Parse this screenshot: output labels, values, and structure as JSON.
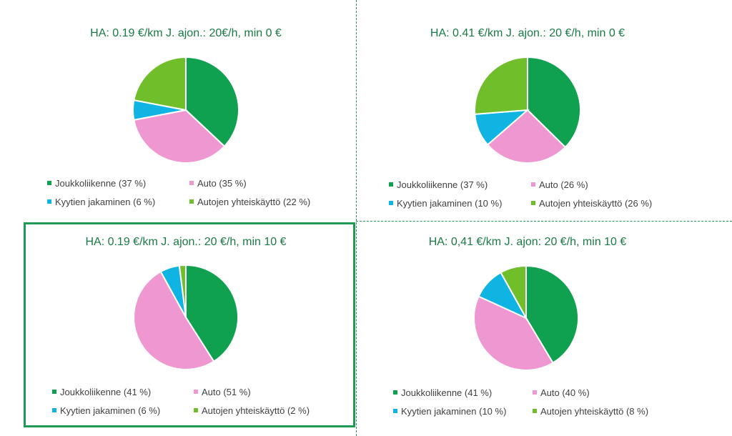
{
  "colors": {
    "Joukkoliikenne": "#0fa050",
    "Auto": "#ef97d0",
    "Kyytien jakaminen": "#0fb4e2",
    "Autojen yhteiskäyttö": "#6fbe2a"
  },
  "chart_data": [
    {
      "type": "pie",
      "title": "HA: 0.19 €/km  J. ajon.: 20€/h, min 0 €",
      "slices": [
        {
          "name": "Joukkoliikenne",
          "value": 37,
          "legend": "Joukkoliikenne (37 %)"
        },
        {
          "name": "Auto",
          "value": 35,
          "legend": "Auto (35 %)"
        },
        {
          "name": "Kyytien jakaminen",
          "value": 6,
          "legend": "Kyytien jakaminen (6 %)"
        },
        {
          "name": "Autojen yhteiskäyttö",
          "value": 22,
          "legend": "Autojen yhteiskäyttö  (22 %)"
        }
      ]
    },
    {
      "type": "pie",
      "title": "HA: 0.41 €/km  J. ajon.: 20 €/h, min 0 €",
      "slices": [
        {
          "name": "Joukkoliikenne",
          "value": 37,
          "legend": "Joukkoliikenne (37 %)"
        },
        {
          "name": "Auto",
          "value": 26,
          "legend": "Auto (26 %)"
        },
        {
          "name": "Kyytien jakaminen",
          "value": 10,
          "legend": "Kyytien jakaminen (10 %)"
        },
        {
          "name": "Autojen yhteiskäyttö",
          "value": 26,
          "legend": "Autojen yhteiskäyttö  (26 %)"
        }
      ]
    },
    {
      "type": "pie",
      "title": "HA: 0.19 €/km  J. ajon.: 20 €/h, min 10 €",
      "highlighted": true,
      "slices": [
        {
          "name": "Joukkoliikenne",
          "value": 41,
          "legend": "Joukkoliikenne (41 %)"
        },
        {
          "name": "Auto",
          "value": 51,
          "legend": "Auto (51 %)"
        },
        {
          "name": "Kyytien jakaminen",
          "value": 6,
          "legend": "Kyytien jakaminen (6 %)"
        },
        {
          "name": "Autojen yhteiskäyttö",
          "value": 2,
          "legend": "Autojen yhteiskäyttö  (2 %)"
        }
      ]
    },
    {
      "type": "pie",
      "title": "HA: 0,41 €/km  J. ajon: 20 €/h, min 10 €",
      "slices": [
        {
          "name": "Joukkoliikenne",
          "value": 41,
          "legend": "Joukkoliikenne (41 %)"
        },
        {
          "name": "Auto",
          "value": 40,
          "legend": "Auto (40 %)"
        },
        {
          "name": "Kyytien jakaminen",
          "value": 10,
          "legend": "Kyytien jakaminen (10 %)"
        },
        {
          "name": "Autojen yhteiskäyttö",
          "value": 8,
          "legend": "Autojen yhteiskäyttö  (8 %)"
        }
      ]
    }
  ]
}
